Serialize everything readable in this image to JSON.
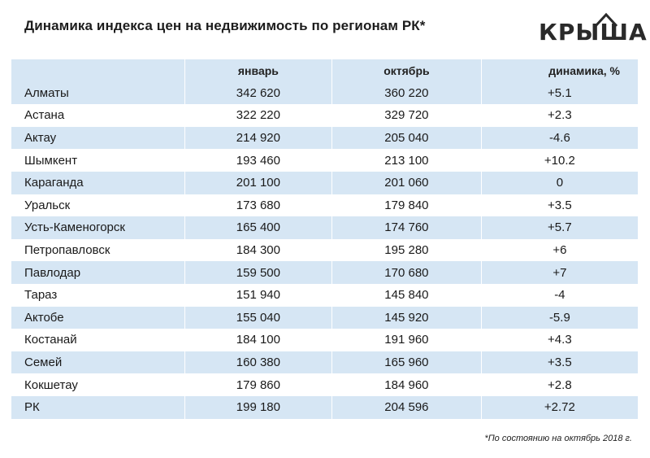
{
  "title": "Динамика индекса цен на недвижимость по регионам РК*",
  "logo": {
    "text": "КРЫША"
  },
  "table": {
    "headers": [
      "",
      "январь",
      "октябрь",
      "динамика, %"
    ],
    "rows": [
      [
        "Алматы",
        "342 620",
        "360 220",
        "+5.1"
      ],
      [
        "Астана",
        "322 220",
        "329 720",
        "+2.3"
      ],
      [
        "Актау",
        "214 920",
        "205 040",
        "-4.6"
      ],
      [
        "Шымкент",
        "193 460",
        "213 100",
        "+10.2"
      ],
      [
        "Караганда",
        "201 100",
        "201 060",
        "0"
      ],
      [
        "Уральск",
        "173 680",
        "179 840",
        "+3.5"
      ],
      [
        "Усть-Каменогорск",
        "165 400",
        "174 760",
        "+5.7"
      ],
      [
        "Петропавловск",
        "184 300",
        "195 280",
        "+6"
      ],
      [
        "Павлодар",
        "159 500",
        "170 680",
        "+7"
      ],
      [
        "Тараз",
        "151 940",
        "145 840",
        "-4"
      ],
      [
        "Актобе",
        "155 040",
        "145 920",
        "-5.9"
      ],
      [
        "Костанай",
        "184 100",
        "191 960",
        "+4.3"
      ],
      [
        "Семей",
        "160 380",
        "165 960",
        "+3.5"
      ],
      [
        "Кокшетау",
        "179 860",
        "184 960",
        "+2.8"
      ],
      [
        "РК",
        "199 180",
        "204 596",
        "+2.72"
      ]
    ]
  },
  "footnote": "*По состоянию на октябрь 2018 г.",
  "colors": {
    "header_row": "#d6e6f4",
    "stripe": "#d6e6f4",
    "text": "#1a1a1a"
  }
}
